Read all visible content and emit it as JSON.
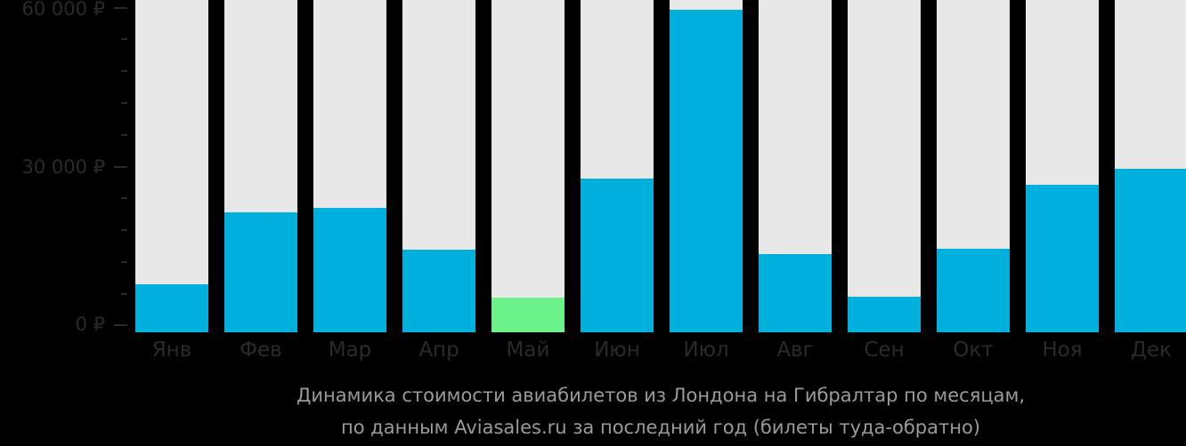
{
  "chart_data": {
    "type": "bar",
    "title": "Динамика стоимости авиабилетов из Лондона на Гибралтар по месяцам, по данным Aviasales.ru за последний год (билеты туда-обратно)",
    "xlabel": "",
    "ylabel": "",
    "ylim": [
      0,
      60000
    ],
    "y_ticks": [
      "0 ₽",
      "30 000 ₽",
      "60 000 ₽"
    ],
    "categories": [
      "Янв",
      "Фев",
      "Мар",
      "Апр",
      "Май",
      "Июн",
      "Июл",
      "Авг",
      "Сен",
      "Окт",
      "Ноя",
      "Дек"
    ],
    "values": [
      8000,
      21500,
      22300,
      14500,
      5500,
      27800,
      59500,
      13700,
      5700,
      14700,
      26700,
      29700
    ],
    "highlight_min_index": 4,
    "colors": {
      "bar": "#00b0dc",
      "min_bar": "#6cf28a",
      "track": "#e8e8e8",
      "background": "#000000"
    },
    "grid": false,
    "legend": null
  },
  "axis": {
    "y_labels": {
      "top": "60 000 ₽",
      "mid": "30 000 ₽",
      "zero": "0 ₽"
    }
  },
  "months": {
    "m0": "Янв",
    "m1": "Фев",
    "m2": "Мар",
    "m3": "Апр",
    "m4": "Май",
    "m5": "Июн",
    "m6": "Июл",
    "m7": "Авг",
    "m8": "Сен",
    "m9": "Окт",
    "m10": "Ноя",
    "m11": "Дек"
  },
  "caption": {
    "line1": "Динамика стоимости авиабилетов из Лондона на Гибралтар по месяцам,",
    "line2": "по данным Aviasales.ru за последний год (билеты туда-обратно)"
  }
}
